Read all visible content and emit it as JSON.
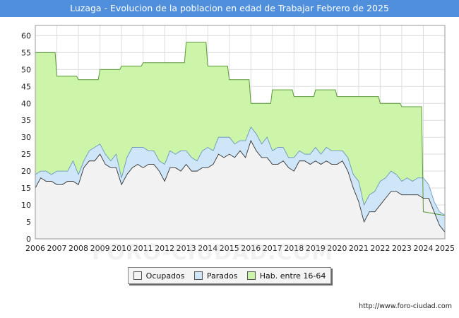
{
  "header": {
    "title": "Luzaga - Evolucion de la poblacion en edad de Trabajar Febrero de 2025"
  },
  "watermark": "FORO-CIUDAD.COM",
  "source_url": "http://www.foro-ciudad.com",
  "legend": [
    {
      "label": "Ocupados",
      "color": "#f2f2f2"
    },
    {
      "label": "Parados",
      "color": "#cfe6f8"
    },
    {
      "label": "Hab. entre 16-64",
      "color": "#ccf5aa"
    }
  ],
  "chart_data": {
    "type": "area",
    "title": "Luzaga - Evolucion de la poblacion en edad de Trabajar Febrero de 2025",
    "xlim": [
      2006,
      2025
    ],
    "ylim": [
      0,
      63
    ],
    "x_ticks": [
      2006,
      2007,
      2008,
      2009,
      2010,
      2011,
      2012,
      2013,
      2014,
      2015,
      2016,
      2017,
      2018,
      2019,
      2020,
      2021,
      2022,
      2023,
      2024,
      2025
    ],
    "y_ticks": [
      0,
      5,
      10,
      15,
      20,
      25,
      30,
      35,
      40,
      45,
      50,
      55,
      60
    ],
    "grid": true,
    "colors": {
      "hab": "#ccf5aa",
      "parados": "#cfe6f8",
      "ocupados": "#f2f2f2",
      "line": "#333333",
      "hab_line": "#5a9a3a"
    },
    "series": [
      {
        "name": "Hab. entre 16-64",
        "x": [
          2006,
          2006.92,
          2007,
          2007.92,
          2008,
          2008.92,
          2009,
          2009.92,
          2010,
          2010.92,
          2011,
          2011.92,
          2012,
          2012.92,
          2013,
          2013.92,
          2014,
          2014.92,
          2015,
          2015.92,
          2016,
          2016.92,
          2017,
          2017.92,
          2018,
          2018.92,
          2019,
          2019.92,
          2020,
          2020.92,
          2021,
          2021.92,
          2022,
          2022.92,
          2023,
          2023.92,
          2024,
          2024.92,
          2025
        ],
        "values": [
          55,
          55,
          48,
          48,
          47,
          47,
          50,
          50,
          51,
          51,
          52,
          52,
          52,
          52,
          58,
          58,
          51,
          51,
          47,
          47,
          40,
          40,
          44,
          44,
          42,
          42,
          44,
          44,
          42,
          42,
          42,
          42,
          40,
          40,
          39,
          39,
          8,
          7,
          7
        ]
      },
      {
        "name": "Parados",
        "x": [
          2006,
          2006.25,
          2006.5,
          2006.75,
          2007,
          2007.25,
          2007.5,
          2007.75,
          2008,
          2008.25,
          2008.5,
          2008.75,
          2009,
          2009.25,
          2009.5,
          2009.75,
          2010,
          2010.25,
          2010.5,
          2010.75,
          2011,
          2011.25,
          2011.5,
          2011.75,
          2012,
          2012.25,
          2012.5,
          2012.75,
          2013,
          2013.25,
          2013.5,
          2013.75,
          2014,
          2014.25,
          2014.5,
          2014.75,
          2015,
          2015.25,
          2015.5,
          2015.75,
          2016,
          2016.25,
          2016.5,
          2016.75,
          2017,
          2017.25,
          2017.5,
          2017.75,
          2018,
          2018.25,
          2018.5,
          2018.75,
          2019,
          2019.25,
          2019.5,
          2019.75,
          2020,
          2020.25,
          2020.5,
          2020.75,
          2021,
          2021.25,
          2021.5,
          2021.75,
          2022,
          2022.25,
          2022.5,
          2022.75,
          2023,
          2023.25,
          2023.5,
          2023.75,
          2024,
          2024.25,
          2024.5,
          2024.75,
          2025
        ],
        "values": [
          4,
          2,
          3,
          2,
          4,
          4,
          3,
          6,
          3,
          2,
          3,
          4,
          3,
          3,
          2,
          4,
          2,
          5,
          6,
          5,
          6,
          4,
          4,
          3,
          5,
          5,
          4,
          6,
          4,
          4,
          3,
          5,
          6,
          4,
          5,
          6,
          5,
          4,
          3,
          5,
          4,
          5,
          4,
          6,
          4,
          5,
          4,
          3,
          4,
          3,
          2,
          3,
          4,
          3,
          4,
          4,
          4,
          3,
          4,
          4,
          6,
          5,
          5,
          6,
          7,
          6,
          6,
          5,
          4,
          5,
          4,
          5,
          6,
          4,
          3,
          4,
          5
        ]
      },
      {
        "name": "Ocupados",
        "x": [
          2006,
          2006.25,
          2006.5,
          2006.75,
          2007,
          2007.25,
          2007.5,
          2007.75,
          2008,
          2008.25,
          2008.5,
          2008.75,
          2009,
          2009.25,
          2009.5,
          2009.75,
          2010,
          2010.25,
          2010.5,
          2010.75,
          2011,
          2011.25,
          2011.5,
          2011.75,
          2012,
          2012.25,
          2012.5,
          2012.75,
          2013,
          2013.25,
          2013.5,
          2013.75,
          2014,
          2014.25,
          2014.5,
          2014.75,
          2015,
          2015.25,
          2015.5,
          2015.75,
          2016,
          2016.25,
          2016.5,
          2016.75,
          2017,
          2017.25,
          2017.5,
          2017.75,
          2018,
          2018.25,
          2018.5,
          2018.75,
          2019,
          2019.25,
          2019.5,
          2019.75,
          2020,
          2020.25,
          2020.5,
          2020.75,
          2021,
          2021.25,
          2021.5,
          2021.75,
          2022,
          2022.25,
          2022.5,
          2022.75,
          2023,
          2023.25,
          2023.5,
          2023.75,
          2024,
          2024.25,
          2024.5,
          2024.75,
          2025
        ],
        "values": [
          15,
          18,
          17,
          17,
          16,
          16,
          17,
          17,
          16,
          21,
          23,
          23,
          25,
          22,
          21,
          21,
          16,
          19,
          21,
          22,
          21,
          22,
          22,
          20,
          17,
          21,
          21,
          20,
          22,
          20,
          20,
          21,
          21,
          22,
          25,
          24,
          25,
          24,
          26,
          24,
          29,
          26,
          24,
          24,
          22,
          22,
          23,
          21,
          20,
          23,
          23,
          22,
          23,
          22,
          23,
          22,
          22,
          23,
          20,
          15,
          11,
          5,
          8,
          8,
          10,
          12,
          14,
          14,
          13,
          13,
          13,
          13,
          12,
          12,
          8,
          4,
          2
        ]
      }
    ]
  }
}
